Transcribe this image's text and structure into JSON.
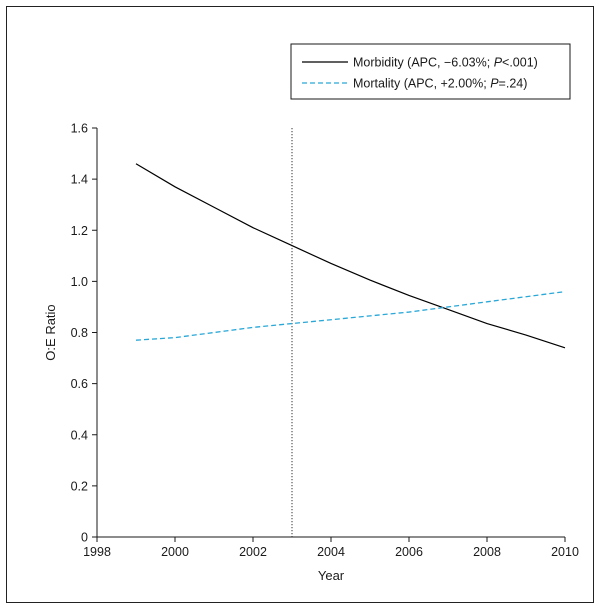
{
  "chart_data": {
    "type": "line",
    "xlabel": "Year",
    "ylabel": "O:E Ratio",
    "xlim": [
      1998,
      2010
    ],
    "ylim": [
      0,
      1.6
    ],
    "xticks": [
      1998,
      2000,
      2002,
      2004,
      2006,
      2008,
      2010
    ],
    "yticks": [
      0,
      0.2,
      0.4,
      0.6,
      0.8,
      1.0,
      1.2,
      1.4,
      1.6
    ],
    "ytick_labels": [
      "0",
      "0.2",
      "0.4",
      "0.6",
      "0.8",
      "1.0",
      "1.2",
      "1.4",
      "1.6"
    ],
    "reference_line_x": 2003,
    "grid": false,
    "legend_position": "top-right",
    "series": [
      {
        "name": "Morbidity (APC, −6.03%; P<.001)",
        "legend_parts": [
          "Morbidity (APC, −6.03%; ",
          "P",
          "<.001)"
        ],
        "color": "#000000",
        "style": "solid",
        "x": [
          1999,
          2000,
          2001,
          2002,
          2003,
          2004,
          2005,
          2006,
          2007,
          2008,
          2009,
          2010
        ],
        "y": [
          1.46,
          1.37,
          1.29,
          1.21,
          1.14,
          1.07,
          1.005,
          0.945,
          0.89,
          0.835,
          0.79,
          0.74
        ]
      },
      {
        "name": "Mortality (APC, +2.00%; P=.24)",
        "legend_parts": [
          "Mortality (APC, +2.00%; ",
          "P",
          "=.24)"
        ],
        "color": "#29a8d8",
        "style": "dashed",
        "x": [
          1999,
          2000,
          2001,
          2002,
          2003,
          2004,
          2005,
          2006,
          2007,
          2008,
          2009,
          2010
        ],
        "y": [
          0.77,
          0.78,
          0.8,
          0.82,
          0.835,
          0.85,
          0.865,
          0.88,
          0.9,
          0.92,
          0.94,
          0.96
        ]
      }
    ]
  }
}
